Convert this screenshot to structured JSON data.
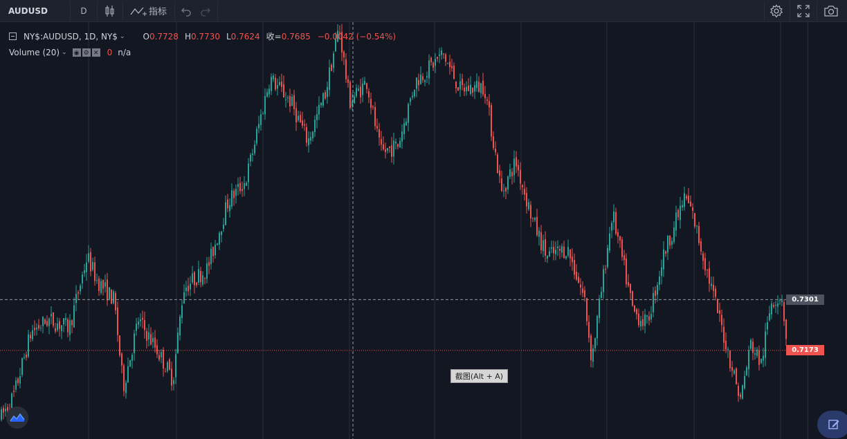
{
  "toolbar": {
    "symbol": "AUDUSD",
    "interval": "D",
    "indicators_label": "指标"
  },
  "legend": {
    "title": "NY$:AUDUSD, 1D, NY$",
    "o_label": "O",
    "o_value": "0.7728",
    "h_label": "H",
    "h_value": "0.7730",
    "l_label": "L",
    "l_value": "0.7624",
    "c_label": "收=",
    "c_value": "0.7685",
    "change": "−0.0042 (−0.54%)",
    "volume_title": "Volume (20)",
    "volume_value": "0",
    "volume_na": "n/a"
  },
  "price_tags": {
    "crosshair": "0.7301",
    "last": "0.7173"
  },
  "tooltip": "截图(Alt + A)",
  "colors": {
    "up": "#26a69a",
    "down": "#ef5350",
    "background": "#131722",
    "grid": "#2a2e39"
  },
  "chart_data": {
    "type": "candlestick",
    "symbol": "NY$:AUDUSD",
    "interval": "1D",
    "y_range": [
      0.695,
      0.8
    ],
    "crosshair_price": 0.7301,
    "last_price": 0.7173,
    "shape_points": [
      [
        0,
        0.7
      ],
      [
        20,
        0.706
      ],
      [
        45,
        0.722
      ],
      [
        70,
        0.725
      ],
      [
        100,
        0.723
      ],
      [
        126,
        0.741
      ],
      [
        140,
        0.735
      ],
      [
        165,
        0.73
      ],
      [
        178,
        0.708
      ],
      [
        200,
        0.725
      ],
      [
        225,
        0.718
      ],
      [
        250,
        0.71
      ],
      [
        265,
        0.733
      ],
      [
        300,
        0.738
      ],
      [
        330,
        0.755
      ],
      [
        355,
        0.76
      ],
      [
        390,
        0.786
      ],
      [
        420,
        0.78
      ],
      [
        445,
        0.77
      ],
      [
        470,
        0.782
      ],
      [
        490,
        0.799
      ],
      [
        505,
        0.78
      ],
      [
        530,
        0.785
      ],
      [
        550,
        0.767
      ],
      [
        575,
        0.769
      ],
      [
        600,
        0.785
      ],
      [
        640,
        0.792
      ],
      [
        665,
        0.783
      ],
      [
        700,
        0.784
      ],
      [
        725,
        0.757
      ],
      [
        745,
        0.765
      ],
      [
        770,
        0.75
      ],
      [
        790,
        0.741
      ],
      [
        820,
        0.743
      ],
      [
        845,
        0.73
      ],
      [
        855,
        0.715
      ],
      [
        885,
        0.752
      ],
      [
        915,
        0.727
      ],
      [
        935,
        0.724
      ],
      [
        960,
        0.742
      ],
      [
        990,
        0.756
      ],
      [
        1000,
        0.752
      ],
      [
        1040,
        0.725
      ],
      [
        1070,
        0.705
      ],
      [
        1085,
        0.719
      ],
      [
        1100,
        0.714
      ],
      [
        1115,
        0.73
      ],
      [
        1130,
        0.731
      ],
      [
        1138,
        0.717
      ]
    ]
  }
}
